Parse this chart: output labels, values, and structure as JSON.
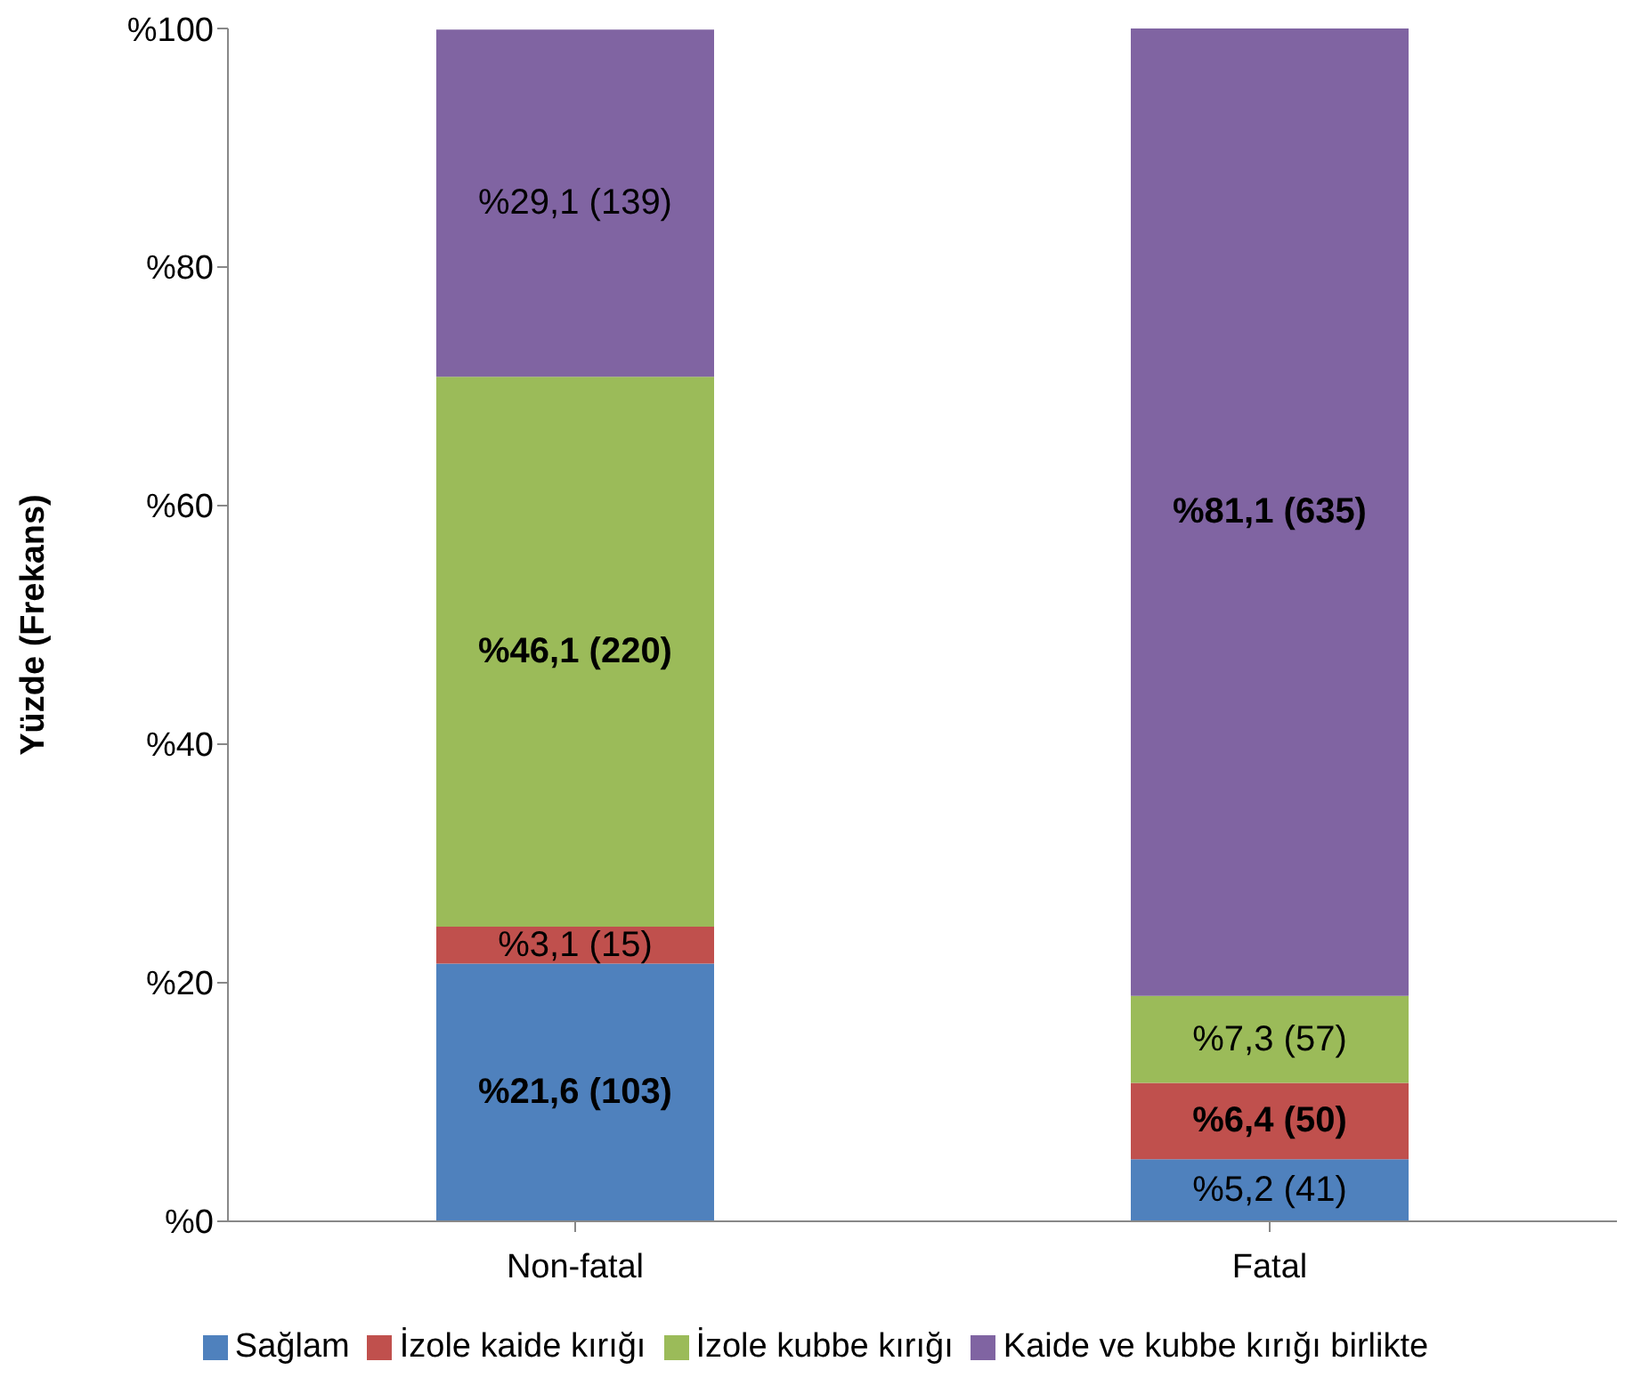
{
  "chart_data": {
    "type": "bar",
    "stacked": true,
    "ylabel": "Yüzde (Frekans)",
    "categories": [
      "Non-fatal",
      "Fatal"
    ],
    "series": [
      {
        "name": "Sağlam",
        "color": "#4f81bd",
        "values": [
          21.6,
          5.2
        ],
        "value_labels": [
          "%21,6 (103)",
          "%5,2 (41)"
        ]
      },
      {
        "name": "İzole kaide kırığı",
        "color": "#c0504d",
        "values": [
          3.1,
          6.4
        ],
        "value_labels": [
          "%3,1 (15)",
          "%6,4 (50)"
        ]
      },
      {
        "name": "İzole kubbe kırığı",
        "color": "#9bbb59",
        "values": [
          46.1,
          7.3
        ],
        "value_labels": [
          "%46,1 (220)",
          "%7,3 (57)"
        ]
      },
      {
        "name": "Kaide ve kubbe kırığı birlikte",
        "color": "#8064a2",
        "values": [
          29.1,
          81.1
        ],
        "value_labels": [
          "%29,1 (139)",
          "%81,1 (635)"
        ]
      }
    ],
    "ylim": [
      0,
      100
    ],
    "yticks": [
      {
        "value": 0,
        "label": "%0"
      },
      {
        "value": 20,
        "label": "%20"
      },
      {
        "value": 40,
        "label": "%40"
      },
      {
        "value": 60,
        "label": "%60"
      },
      {
        "value": 80,
        "label": "%80"
      },
      {
        "value": 100,
        "label": "%100"
      }
    ],
    "grid": false,
    "legend": "bottom"
  }
}
